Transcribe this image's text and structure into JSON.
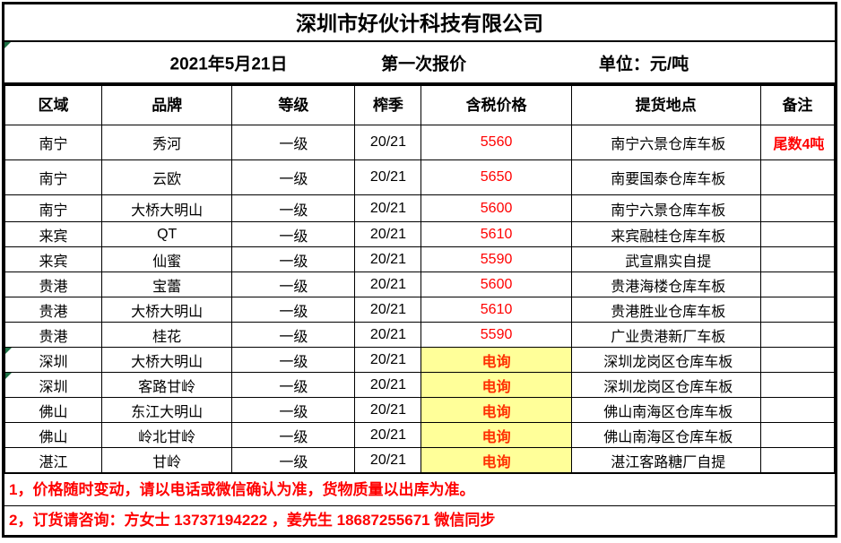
{
  "title": "深圳市好伙计科技有限公司",
  "info": {
    "date": "2021年5月21日",
    "round_label": "第一次报价",
    "unit": "单位：元/吨"
  },
  "table": {
    "headers": [
      "区域",
      "品牌",
      "等级",
      "榨季",
      "含税价格",
      "提货地点",
      "备注"
    ],
    "rows": [
      {
        "region": "南宁",
        "brand": "秀河",
        "grade": "一级",
        "season": "20/21",
        "price": "5560",
        "price_type": "normal",
        "location": "南宁六景仓库车板",
        "note": "尾数4吨",
        "marker": false
      },
      {
        "region": "南宁",
        "brand": "云欧",
        "grade": "一级",
        "season": "20/21",
        "price": "5650",
        "price_type": "normal",
        "location": "南要国泰仓库车板",
        "note": "",
        "marker": false
      },
      {
        "region": "南宁",
        "brand": "大桥大明山",
        "grade": "一级",
        "season": "20/21",
        "price": "5600",
        "price_type": "normal",
        "location": "南宁六景仓库车板",
        "note": "",
        "marker": false
      },
      {
        "region": "来宾",
        "brand": "QT",
        "grade": "一级",
        "season": "20/21",
        "price": "5610",
        "price_type": "normal",
        "location": "来宾融桂仓库车板",
        "note": "",
        "marker": false
      },
      {
        "region": "来宾",
        "brand": "仙蜜",
        "grade": "一级",
        "season": "20/21",
        "price": "5590",
        "price_type": "normal",
        "location": "武宣鼎实自提",
        "note": "",
        "marker": false
      },
      {
        "region": "贵港",
        "brand": "宝蕾",
        "grade": "一级",
        "season": "20/21",
        "price": "5600",
        "price_type": "normal",
        "location": "贵港海楼仓库车板",
        "note": "",
        "marker": false
      },
      {
        "region": "贵港",
        "brand": "大桥大明山",
        "grade": "一级",
        "season": "20/21",
        "price": "5610",
        "price_type": "normal",
        "location": "贵港胜业仓库车板",
        "note": "",
        "marker": false
      },
      {
        "region": "贵港",
        "brand": "桂花",
        "grade": "一级",
        "season": "20/21",
        "price": "5590",
        "price_type": "normal",
        "location": "广业贵港新厂车板",
        "note": "",
        "marker": false
      },
      {
        "region": "深圳",
        "brand": "大桥大明山",
        "grade": "一级",
        "season": "20/21",
        "price": "电询",
        "price_type": "inquiry",
        "location": "深圳龙岗区仓库车板",
        "note": "",
        "marker": true
      },
      {
        "region": "深圳",
        "brand": "客路甘岭",
        "grade": "一级",
        "season": "20/21",
        "price": "电询",
        "price_type": "inquiry",
        "location": "深圳龙岗区仓库车板",
        "note": "",
        "marker": true
      },
      {
        "region": "佛山",
        "brand": "东江大明山",
        "grade": "一级",
        "season": "20/21",
        "price": "电询",
        "price_type": "inquiry",
        "location": "佛山南海区仓库车板",
        "note": "",
        "marker": false
      },
      {
        "region": "佛山",
        "brand": "岭北甘岭",
        "grade": "一级",
        "season": "20/21",
        "price": "电询",
        "price_type": "inquiry",
        "location": "佛山南海区仓库车板",
        "note": "",
        "marker": false
      },
      {
        "region": "湛江",
        "brand": "甘岭",
        "grade": "一级",
        "season": "20/21",
        "price": "电询",
        "price_type": "inquiry",
        "location": "湛江客路糖厂自提",
        "note": "",
        "marker": false
      }
    ]
  },
  "footnotes": [
    "1，价格随时变动，请以电话或微信确认为准，货物质量以出库为准。",
    "2，订货请咨询：方女士 13737194222 ，姜先生 18687255671  微信同步"
  ],
  "colors": {
    "price_red": "#FF0000",
    "inquiry_text": "#FF2D00",
    "inquiry_bg": "#FFFF99",
    "note_red": "#FF0000",
    "footnote_red": "#FF0000",
    "triangle_green": "#1E7145",
    "border_black": "#000000"
  }
}
